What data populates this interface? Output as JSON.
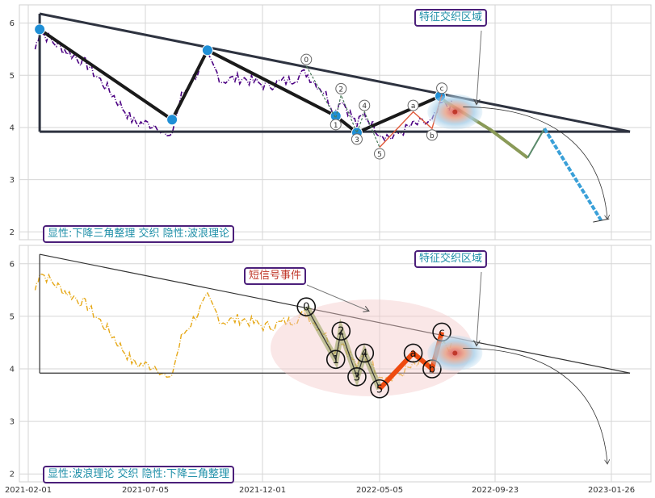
{
  "chart_data": [
    {
      "type": "line",
      "panel": "top",
      "ylim": [
        1.85,
        6.35
      ],
      "yticks": [
        2,
        3,
        4,
        5,
        6
      ],
      "grid": true,
      "legend_box": "显性:下降三角整理 交织 隐性:波浪理论",
      "feature_box": "特征交织区域",
      "price_color": "#4b0082",
      "triangle": {
        "top": [
          [
            "2021-02-16",
            6.18
          ],
          [
            "2023-02-15",
            3.92
          ]
        ],
        "bottom": [
          [
            "2021-02-16",
            3.92
          ],
          [
            "2023-02-15",
            3.92
          ]
        ],
        "left": [
          [
            "2021-02-16",
            6.18
          ],
          [
            "2021-02-16",
            3.92
          ]
        ]
      },
      "swing_points": [
        [
          "2021-02-16",
          5.88
        ],
        [
          "2021-08-08",
          4.15
        ],
        [
          "2021-09-22",
          5.48
        ],
        [
          "2022-03-08",
          4.22
        ],
        [
          "2022-04-05",
          3.9
        ],
        [
          "2022-07-18",
          4.6
        ]
      ],
      "wave_labels": [
        {
          "label": "0",
          "x": "2022-01-28",
          "y": 5.18
        },
        {
          "label": "1",
          "x": "2022-03-08",
          "y": 4.18
        },
        {
          "label": "2",
          "x": "2022-03-15",
          "y": 4.62
        },
        {
          "label": "3",
          "x": "2022-04-05",
          "y": 3.9
        },
        {
          "label": "4",
          "x": "2022-04-15",
          "y": 4.3
        },
        {
          "label": "5",
          "x": "2022-05-05",
          "y": 3.62
        },
        {
          "label": "a",
          "x": "2022-06-15",
          "y": 4.3
        },
        {
          "label": "b",
          "x": "2022-07-08",
          "y": 3.98
        },
        {
          "label": "c",
          "x": "2022-07-20",
          "y": 4.63
        }
      ],
      "projection": [
        [
          "2022-07-22",
          4.52
        ],
        [
          "2022-09-18",
          3.95
        ],
        [
          "2022-10-28",
          3.42
        ],
        [
          "2022-11-15",
          3.98
        ],
        [
          "2023-01-15",
          2.22
        ]
      ]
    },
    {
      "type": "line",
      "panel": "bottom",
      "ylim": [
        1.85,
        6.35
      ],
      "yticks": [
        2,
        3,
        4,
        5,
        6
      ],
      "grid": true,
      "legend_box": "显性:波浪理论 交织 隐性:下降三角整理",
      "feature_box": "特征交织区域",
      "event_box": "短信号事件",
      "price_color": "#e6a817",
      "wave_labels": [
        {
          "label": "0",
          "x": "2022-01-28",
          "y": 5.18
        },
        {
          "label": "1",
          "x": "2022-03-08",
          "y": 4.18
        },
        {
          "label": "2",
          "x": "2022-03-15",
          "y": 4.72
        },
        {
          "label": "3",
          "x": "2022-04-05",
          "y": 3.85
        },
        {
          "label": "4",
          "x": "2022-04-15",
          "y": 4.3
        },
        {
          "label": "5",
          "x": "2022-05-05",
          "y": 3.62
        },
        {
          "label": "a",
          "x": "2022-06-15",
          "y": 4.3
        },
        {
          "label": "b",
          "x": "2022-07-08",
          "y": 4.0
        },
        {
          "label": "c",
          "x": "2022-07-20",
          "y": 4.7
        }
      ]
    }
  ],
  "x_ticks": [
    "2021-02-01",
    "2021-07-05",
    "2021-12-01",
    "2022-05-05",
    "2022-09-23",
    "2023-01-26"
  ]
}
